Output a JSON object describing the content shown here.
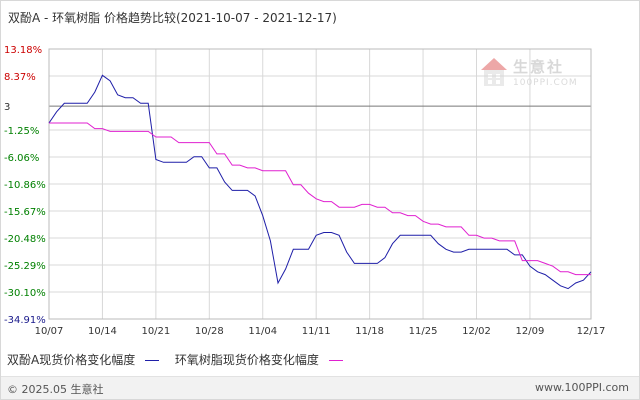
{
  "title": "双酚A - 环氧树脂 价格趋势比较(2021-10-07 - 2021-12-17)",
  "legend": {
    "items": [
      {
        "label": "双酚A现货价格变化幅度",
        "color": "#1f1fa8"
      },
      {
        "label": "环氧树脂现货价格变化幅度",
        "color": "#e020d0"
      }
    ]
  },
  "footer": {
    "copyright": "© 2025.05 生意社",
    "site": "www.100PPI.com"
  },
  "watermark": {
    "text": "生意社",
    "sub": "100PPI.COM"
  },
  "colors": {
    "tick_red": "#cc0000",
    "tick_green": "#008000",
    "tick_blue": "#1a1a8c",
    "grid": "#d8d8d8",
    "baseline": "#777777"
  },
  "chart_data": {
    "type": "line",
    "x": [
      "10/07",
      "10/08",
      "10/09",
      "10/10",
      "10/11",
      "10/12",
      "10/13",
      "10/14",
      "10/15",
      "10/16",
      "10/17",
      "10/18",
      "10/19",
      "10/20",
      "10/21",
      "10/22",
      "10/23",
      "10/24",
      "10/25",
      "10/26",
      "10/27",
      "10/28",
      "10/29",
      "10/30",
      "10/31",
      "11/01",
      "11/02",
      "11/03",
      "11/04",
      "11/05",
      "11/06",
      "11/07",
      "11/08",
      "11/09",
      "11/10",
      "11/11",
      "11/12",
      "11/13",
      "11/14",
      "11/15",
      "11/16",
      "11/17",
      "11/18",
      "11/19",
      "11/20",
      "11/21",
      "11/22",
      "11/23",
      "11/24",
      "11/25",
      "11/26",
      "11/27",
      "11/28",
      "11/29",
      "11/30",
      "12/01",
      "12/02",
      "12/03",
      "12/04",
      "12/05",
      "12/06",
      "12/07",
      "12/08",
      "12/09",
      "12/10",
      "12/11",
      "12/12",
      "12/13",
      "12/14",
      "12/15",
      "12/16",
      "12/17"
    ],
    "x_ticks": [
      "10/07",
      "10/14",
      "10/21",
      "10/28",
      "11/04",
      "11/11",
      "11/18",
      "11/25",
      "12/02",
      "12/09",
      "12/17"
    ],
    "y_ticks": [
      13.18,
      8.37,
      3,
      -1.25,
      -6.06,
      -10.86,
      -15.67,
      -20.48,
      -25.29,
      -30.1,
      -34.91
    ],
    "y_tick_labels": [
      "13.18%",
      "8.37%",
      "3",
      "-1.25%",
      "-6.06%",
      "-10.86%",
      "-15.67%",
      "-20.48%",
      "-25.29%",
      "-30.10%",
      "-34.91%"
    ],
    "baseline": 3,
    "ylim": [
      -34.91,
      13.18
    ],
    "grid": true,
    "legend_position": "bottom",
    "series": [
      {
        "name": "双酚A现货价格变化幅度",
        "values": [
          0.0,
          2.0,
          3.5,
          3.5,
          3.5,
          3.5,
          5.5,
          8.5,
          7.5,
          5.0,
          4.5,
          4.5,
          3.5,
          3.5,
          -6.5,
          -7.0,
          -7.0,
          -7.0,
          -7.0,
          -6.0,
          -6.0,
          -8.0,
          -8.0,
          -10.5,
          -12.0,
          -12.0,
          -12.0,
          -13.0,
          -16.5,
          -21.0,
          -28.5,
          -26.0,
          -22.5,
          -22.5,
          -22.5,
          -20.0,
          -19.5,
          -19.5,
          -20.0,
          -23.0,
          -25.0,
          -25.0,
          -25.0,
          -25.0,
          -24.0,
          -21.5,
          -20.0,
          -20.0,
          -20.0,
          -20.0,
          -20.0,
          -21.5,
          -22.5,
          -23.0,
          -23.0,
          -22.5,
          -22.5,
          -22.5,
          -22.5,
          -22.5,
          -22.5,
          -23.5,
          -23.5,
          -25.5,
          -26.5,
          -27.0,
          -28.0,
          -29.0,
          -29.5,
          -28.5,
          -28.0,
          -26.5
        ],
        "color": "#1f1fa8"
      },
      {
        "name": "环氧树脂现货价格变化幅度",
        "values": [
          0.0,
          0.0,
          0.0,
          0.0,
          0.0,
          0.0,
          -1.0,
          -1.0,
          -1.5,
          -1.5,
          -1.5,
          -1.5,
          -1.5,
          -1.5,
          -2.5,
          -2.5,
          -2.5,
          -3.5,
          -3.5,
          -3.5,
          -3.5,
          -3.5,
          -5.5,
          -5.5,
          -7.5,
          -7.5,
          -8.0,
          -8.0,
          -8.5,
          -8.5,
          -8.5,
          -8.5,
          -11.0,
          -11.0,
          -12.5,
          -13.5,
          -14.0,
          -14.0,
          -15.0,
          -15.0,
          -15.0,
          -14.5,
          -14.5,
          -15.0,
          -15.0,
          -16.0,
          -16.0,
          -16.5,
          -16.5,
          -17.5,
          -18.0,
          -18.0,
          -18.5,
          -18.5,
          -18.5,
          -20.0,
          -20.0,
          -20.5,
          -20.5,
          -21.0,
          -21.0,
          -21.0,
          -24.5,
          -24.5,
          -24.5,
          -25.0,
          -25.5,
          -26.5,
          -26.5,
          -27.0,
          -27.0,
          -27.0
        ],
        "color": "#e020d0"
      }
    ]
  }
}
